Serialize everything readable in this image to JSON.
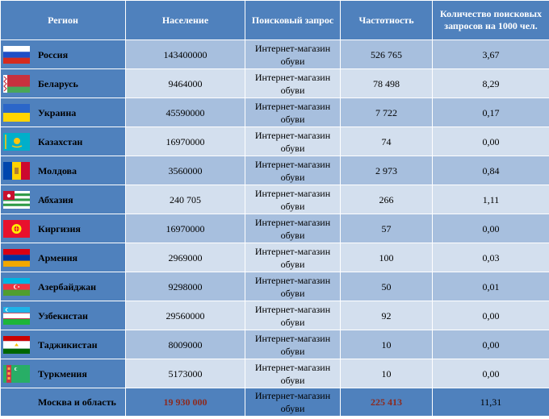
{
  "header": {
    "region": "Регион",
    "population": "Население",
    "query": "Поисковый запрос",
    "frequency": "Частотность",
    "per_thousand_line1": "Количество поисковых",
    "per_thousand_line2": "запросов на 1000 чел."
  },
  "rows": [
    {
      "region": "Россия",
      "flag": "russia-flag",
      "population": "143400000",
      "query_line1": "Интернет-магазин",
      "query_line2": "обуви",
      "frequency": "526 765",
      "per_thousand": "3,67"
    },
    {
      "region": "Беларусь",
      "flag": "belarus-flag",
      "population": "9464000",
      "query_line1": "Интернет-магазин",
      "query_line2": "обуви",
      "frequency": "78 498",
      "per_thousand": "8,29"
    },
    {
      "region": "Украина",
      "flag": "ukraine-flag",
      "population": "45590000",
      "query_line1": "Интернет-магазин",
      "query_line2": "обуви",
      "frequency": "7 722",
      "per_thousand": "0,17"
    },
    {
      "region": "Казахстан",
      "flag": "kazakhstan-flag",
      "population": "16970000",
      "query_line1": "Интернет-магазин",
      "query_line2": "обуви",
      "frequency": "74",
      "per_thousand": "0,00"
    },
    {
      "region": "Молдова",
      "flag": "moldova-flag",
      "population": "3560000",
      "query_line1": "Интернет-магазин",
      "query_line2": "обуви",
      "frequency": "2 973",
      "per_thousand": "0,84"
    },
    {
      "region": "Абхазия",
      "flag": "abkhazia-flag",
      "population": "240 705",
      "query_line1": "Интернет-магазин",
      "query_line2": "обуви",
      "frequency": "266",
      "per_thousand": "1,11"
    },
    {
      "region": "Киргизия",
      "flag": "kyrgyzstan-flag",
      "population": "16970000",
      "query_line1": "Интернет-магазин",
      "query_line2": "обуви",
      "frequency": "57",
      "per_thousand": "0,00"
    },
    {
      "region": "Армения",
      "flag": "armenia-flag",
      "population": "2969000",
      "query_line1": "Интернет-магазин",
      "query_line2": "обуви",
      "frequency": "100",
      "per_thousand": "0,03"
    },
    {
      "region": "Азербайджан",
      "flag": "azerbaijan-flag",
      "population": "9298000",
      "query_line1": "Интернет-магазин",
      "query_line2": "обуви",
      "frequency": "50",
      "per_thousand": "0,01"
    },
    {
      "region": "Узбекистан",
      "flag": "uzbekistan-flag",
      "population": "29560000",
      "query_line1": "Интернет-магазин",
      "query_line2": "обуви",
      "frequency": "92",
      "per_thousand": "0,00"
    },
    {
      "region": "Таджикистан",
      "flag": "tajikistan-flag",
      "population": "8009000",
      "query_line1": "Интернет-магазин",
      "query_line2": "обуви",
      "frequency": "10",
      "per_thousand": "0,00"
    },
    {
      "region": "Туркмения",
      "flag": "turkmenistan-flag",
      "population": "5173000",
      "query_line1": "Интернет-магазин",
      "query_line2": "обуви",
      "frequency": "10",
      "per_thousand": "0,00"
    }
  ],
  "total": {
    "region": "Москва и область",
    "population": "19 930 000",
    "query_line1": "Интернет-магазин",
    "query_line2": "обуви",
    "frequency": "225 413",
    "per_thousand": "11,31"
  },
  "colors": {
    "header_bg": "#4f81bd",
    "row_dark": "#a7bfde",
    "row_light": "#d3dfee",
    "total_highlight": "#8c2a1f"
  }
}
